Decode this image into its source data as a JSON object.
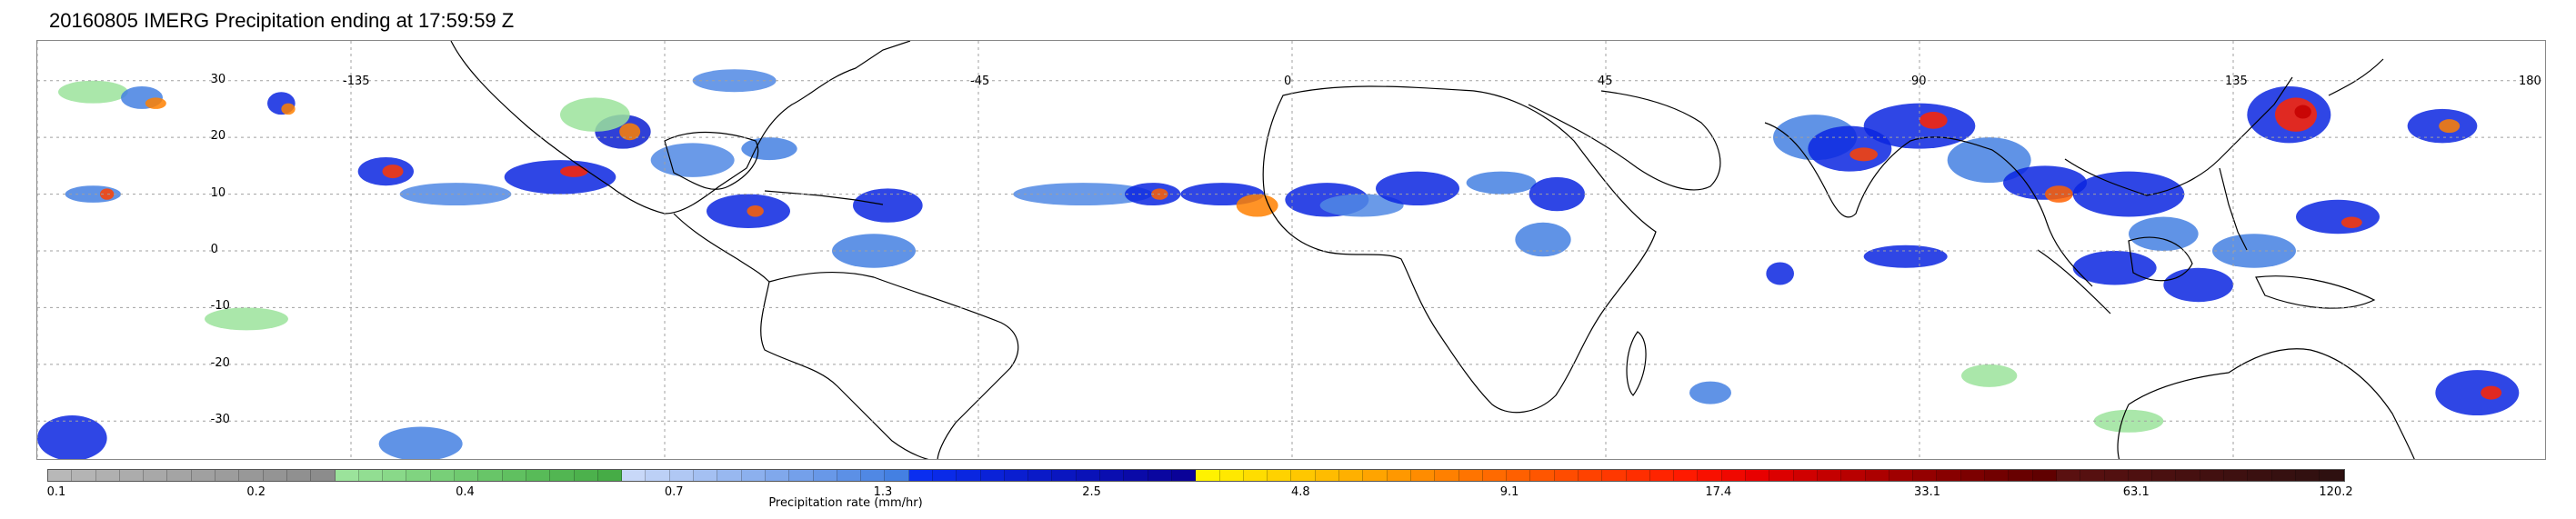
{
  "title": "20160805 IMERG Precipitation ending at 17:59:59 Z",
  "map": {
    "lon_labels": [
      "-135",
      "-45",
      "0",
      "45",
      "90",
      "135",
      "180"
    ],
    "lat_labels": [
      "30",
      "20",
      "10",
      "0",
      "-10",
      "-20",
      "-30"
    ],
    "lon_range": [
      -180,
      180
    ],
    "lat_range": [
      -37,
      37
    ],
    "gridlines": true,
    "coastline_color": "#000000",
    "grid_color": "#a0a0a0"
  },
  "colorbar": {
    "label": "Precipitation rate (mm/hr)",
    "tick_labels": [
      "0.1",
      "0.2",
      "0.4",
      "0.7",
      "1.3",
      "2.5",
      "4.8",
      "9.1",
      "17.4",
      "33.1",
      "63.1",
      "120.2"
    ],
    "colors": [
      "#b8b8b8",
      "#b4b4b4",
      "#b0b0b0",
      "#acacac",
      "#a8a8a8",
      "#a4a4a4",
      "#a0a0a0",
      "#9c9c9c",
      "#989898",
      "#949494",
      "#909090",
      "#8c8c8c",
      "#9be39b",
      "#92de92",
      "#89d989",
      "#80d480",
      "#78cf78",
      "#70ca70",
      "#68c568",
      "#60c060",
      "#58bb58",
      "#52b652",
      "#4cb14c",
      "#46ac46",
      "#c8d8f8",
      "#bcd0f6",
      "#b0c8f4",
      "#a4c0f2",
      "#98b8f0",
      "#8cb0ee",
      "#80a8ec",
      "#74a0ea",
      "#6898e8",
      "#5c90e6",
      "#5088e4",
      "#4480e2",
      "#0a2ef0",
      "#0a2ae8",
      "#0a26e0",
      "#0a22d8",
      "#0a1ed0",
      "#0a1ac8",
      "#0a16c0",
      "#0a12b8",
      "#0a0eb0",
      "#0a0aa8",
      "#0a06a0",
      "#0a0298",
      "#fff200",
      "#ffe800",
      "#ffdd00",
      "#ffd200",
      "#ffc700",
      "#ffbc00",
      "#ffb000",
      "#ffa400",
      "#ff9800",
      "#ff8c00",
      "#ff8000",
      "#ff7400",
      "#ff6a00",
      "#ff6000",
      "#ff5600",
      "#ff4c00",
      "#ff4200",
      "#ff3800",
      "#ff2e00",
      "#ff2400",
      "#ff1a00",
      "#f81000",
      "#f00800",
      "#e80000",
      "#dc0000",
      "#d00000",
      "#c40000",
      "#b80000",
      "#ac0000",
      "#a00000",
      "#940000",
      "#880000",
      "#7c0000",
      "#720000",
      "#680000",
      "#600000",
      "#5a1010",
      "#561010",
      "#521010",
      "#4e1010",
      "#4a1010",
      "#461010",
      "#421010",
      "#3e1010",
      "#3a1010",
      "#361010",
      "#321010",
      "#2e1010"
    ]
  },
  "precip_cells": [
    [
      -172,
      28,
      5,
      2,
      "#9be39b"
    ],
    [
      -165,
      27,
      3,
      2,
      "#4480e2"
    ],
    [
      -163,
      26,
      1.5,
      1,
      "#ff8000"
    ],
    [
      -172,
      10,
      4,
      1.5,
      "#4480e2"
    ],
    [
      -170,
      10,
      1,
      1,
      "#ff4200"
    ],
    [
      -145,
      26,
      2,
      2,
      "#0a26e0"
    ],
    [
      -144,
      25,
      1,
      1,
      "#ff8000"
    ],
    [
      -130,
      14,
      4,
      2.5,
      "#0a26e0"
    ],
    [
      -129,
      14,
      1.5,
      1.2,
      "#ff3800"
    ],
    [
      -120,
      10,
      8,
      2,
      "#5088e4"
    ],
    [
      -105,
      13,
      8,
      3,
      "#0a26e0"
    ],
    [
      -103,
      14,
      2,
      1,
      "#ff2400"
    ],
    [
      -96,
      21,
      4,
      3,
      "#0a1ed0"
    ],
    [
      -95,
      21,
      1.5,
      1.5,
      "#ff8000"
    ],
    [
      -86,
      16,
      6,
      3,
      "#5088e4"
    ],
    [
      -78,
      7,
      6,
      3,
      "#0a26e0"
    ],
    [
      -77,
      7,
      1.2,
      1,
      "#ff6000"
    ],
    [
      -75,
      18,
      4,
      2,
      "#4480e2"
    ],
    [
      -60,
      0,
      6,
      3,
      "#4480e2"
    ],
    [
      -58,
      8,
      5,
      3,
      "#0a26e0"
    ],
    [
      -100,
      24,
      5,
      3,
      "#9be39b"
    ],
    [
      -80,
      30,
      6,
      2,
      "#5088e4"
    ],
    [
      -30,
      10,
      10,
      2,
      "#5088e4"
    ],
    [
      -20,
      10,
      4,
      2,
      "#0a26e0"
    ],
    [
      -19,
      10,
      1.2,
      1,
      "#ff6000"
    ],
    [
      -10,
      10,
      6,
      2,
      "#0a26e0"
    ],
    [
      -5,
      8,
      3,
      2,
      "#ff8000"
    ],
    [
      5,
      9,
      6,
      3,
      "#0a26e0"
    ],
    [
      10,
      8,
      6,
      2,
      "#5088e4"
    ],
    [
      18,
      11,
      6,
      3,
      "#0a26e0"
    ],
    [
      30,
      12,
      5,
      2,
      "#4480e2"
    ],
    [
      38,
      10,
      4,
      3,
      "#0a26e0"
    ],
    [
      36,
      2,
      4,
      3,
      "#4480e2"
    ],
    [
      75,
      20,
      6,
      4,
      "#4480e2"
    ],
    [
      80,
      18,
      6,
      4,
      "#0a26e0"
    ],
    [
      82,
      17,
      2,
      1.2,
      "#ff4200"
    ],
    [
      90,
      22,
      8,
      4,
      "#0a26e0"
    ],
    [
      92,
      23,
      2,
      1.5,
      "#ff2400"
    ],
    [
      100,
      16,
      6,
      4,
      "#4480e2"
    ],
    [
      108,
      12,
      6,
      3,
      "#0a26e0"
    ],
    [
      110,
      10,
      2,
      1.5,
      "#ff6000"
    ],
    [
      120,
      10,
      8,
      4,
      "#0a26e0"
    ],
    [
      125,
      3,
      5,
      3,
      "#4480e2"
    ],
    [
      118,
      -3,
      6,
      3,
      "#0a26e0"
    ],
    [
      130,
      -6,
      5,
      3,
      "#0a26e0"
    ],
    [
      138,
      0,
      6,
      3,
      "#4480e2"
    ],
    [
      150,
      6,
      6,
      3,
      "#0a26e0"
    ],
    [
      152,
      5,
      1.5,
      1,
      "#ff3800"
    ],
    [
      143,
      24,
      6,
      5,
      "#0a26e0"
    ],
    [
      144,
      24,
      3,
      3,
      "#ff2400"
    ],
    [
      145,
      24.5,
      1.2,
      1.2,
      "#c40000"
    ],
    [
      165,
      22,
      5,
      3,
      "#0a26e0"
    ],
    [
      166,
      22,
      1.5,
      1.2,
      "#ff8000"
    ],
    [
      170,
      -25,
      6,
      4,
      "#0a26e0"
    ],
    [
      172,
      -25,
      1.5,
      1.2,
      "#ff2400"
    ],
    [
      88,
      -1,
      6,
      2,
      "#0a26e0"
    ],
    [
      70,
      -4,
      2,
      2,
      "#0a26e0"
    ],
    [
      -150,
      -12,
      6,
      2,
      "#9be39b"
    ],
    [
      -175,
      -33,
      5,
      4,
      "#0a26e0"
    ],
    [
      -125,
      -34,
      6,
      3,
      "#4480e2"
    ],
    [
      60,
      -25,
      3,
      2,
      "#4480e2"
    ],
    [
      100,
      -22,
      4,
      2,
      "#9be39b"
    ],
    [
      120,
      -30,
      5,
      2,
      "#9be39b"
    ]
  ]
}
